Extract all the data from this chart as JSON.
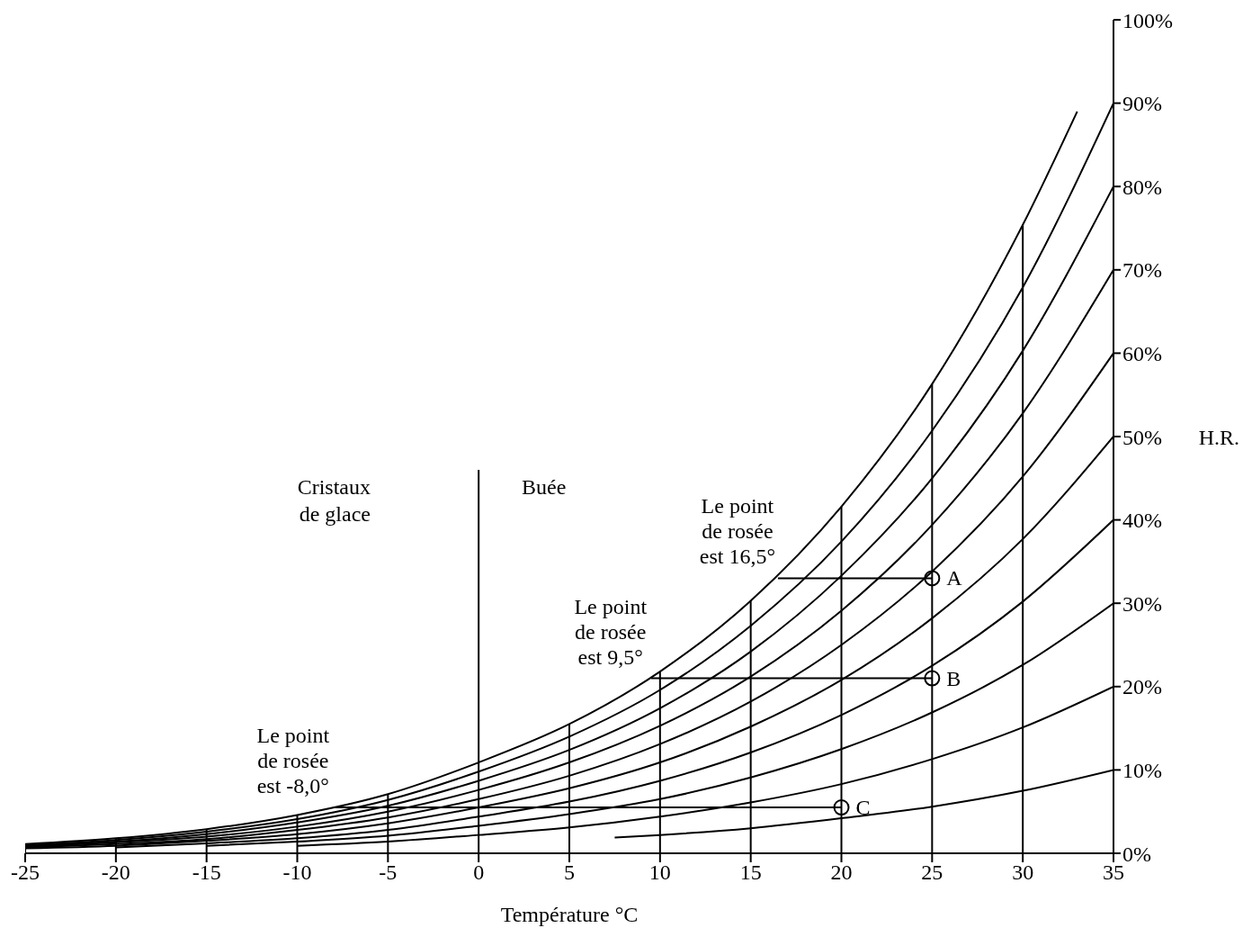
{
  "chart_data": {
    "type": "line",
    "xlabel": "Température   °C",
    "ylabel": "H.R.",
    "xlim": [
      -25,
      35
    ],
    "xticks": [
      -25,
      -20,
      -15,
      -10,
      -5,
      0,
      5,
      10,
      15,
      20,
      25,
      30,
      35
    ],
    "ylim": [
      0,
      100
    ],
    "yticks": [
      {
        "value": 0,
        "label": "0%"
      },
      {
        "value": 10,
        "label": "10%"
      },
      {
        "value": 20,
        "label": "20%"
      },
      {
        "value": 30,
        "label": "30%"
      },
      {
        "value": 40,
        "label": "40%"
      },
      {
        "value": 50,
        "label": "50%"
      },
      {
        "value": 60,
        "label": "60%"
      },
      {
        "value": 70,
        "label": "70%"
      },
      {
        "value": 80,
        "label": "80%"
      },
      {
        "value": 90,
        "label": "90%"
      },
      {
        "value": 100,
        "label": "100%"
      }
    ],
    "marker": "none",
    "line_style": "solid",
    "series": [
      {
        "color": "#000000",
        "x": [
          7.5,
          10,
          15,
          20,
          25,
          30,
          35
        ],
        "values": [
          1.9,
          2.2,
          3.0,
          4.2,
          5.6,
          7.5,
          10
        ]
      },
      {
        "color": "#000000",
        "x": [
          -10,
          -5,
          0,
          5,
          10,
          15,
          20,
          25,
          30,
          35
        ],
        "values": [
          0.9,
          1.4,
          2.2,
          3.1,
          4.4,
          6.1,
          8.3,
          11.3,
          15.1,
          20
        ]
      },
      {
        "color": "#000000",
        "x": [
          -15,
          -10,
          -5,
          0,
          5,
          10,
          15,
          20,
          25,
          30,
          35
        ],
        "values": [
          0.9,
          1.4,
          2.1,
          3.3,
          4.7,
          6.5,
          9.1,
          12.5,
          16.9,
          22.6,
          30
        ]
      },
      {
        "color": "#000000",
        "x": [
          -20,
          -15,
          -10,
          -5,
          0,
          5,
          10,
          15,
          20,
          25,
          30,
          35
        ],
        "values": [
          0.7,
          1.2,
          1.8,
          2.8,
          4.4,
          6.2,
          8.7,
          12.1,
          16.6,
          22.5,
          30.2,
          40
        ]
      },
      {
        "color": "#000000",
        "x": [
          -25,
          -20,
          -15,
          -10,
          -5,
          0,
          5,
          10,
          15,
          20,
          25,
          30,
          35
        ],
        "values": [
          0.6,
          0.9,
          1.5,
          2.3,
          3.6,
          5.5,
          7.8,
          10.9,
          15.2,
          20.8,
          28.2,
          37.7,
          50
        ]
      },
      {
        "color": "#000000",
        "x": [
          -25,
          -20,
          -15,
          -10,
          -5,
          0,
          5,
          10,
          15,
          20,
          25,
          30,
          35
        ],
        "values": [
          0.7,
          1.1,
          1.7,
          2.8,
          4.3,
          6.5,
          9.3,
          13.1,
          18.2,
          25.0,
          33.8,
          45.2,
          60
        ]
      },
      {
        "color": "#000000",
        "x": [
          -25,
          -20,
          -15,
          -10,
          -5,
          0,
          5,
          10,
          15,
          20,
          25,
          30,
          35
        ],
        "values": [
          0.8,
          1.3,
          2.0,
          3.2,
          5.0,
          7.6,
          10.9,
          15.3,
          21.2,
          29.1,
          39.4,
          52.8,
          70
        ]
      },
      {
        "color": "#000000",
        "x": [
          -25,
          -20,
          -15,
          -10,
          -5,
          0,
          5,
          10,
          15,
          20,
          25,
          30,
          35
        ],
        "values": [
          0.9,
          1.4,
          2.3,
          3.7,
          5.7,
          8.7,
          12.4,
          17.4,
          24.2,
          33.3,
          45.0,
          60.3,
          80
        ]
      },
      {
        "color": "#000000",
        "x": [
          -25,
          -20,
          -15,
          -10,
          -5,
          0,
          5,
          10,
          15,
          20,
          25,
          30,
          35
        ],
        "values": [
          1.0,
          1.6,
          2.6,
          4.1,
          6.4,
          9.8,
          14.0,
          19.6,
          27.3,
          37.4,
          50.7,
          67.9,
          90
        ]
      },
      {
        "color": "#000000",
        "x": [
          -25,
          -20,
          -15,
          -10,
          -5,
          0,
          5,
          10,
          15,
          20,
          25,
          30,
          33
        ],
        "values": [
          1.1,
          1.8,
          2.9,
          4.6,
          7.1,
          10.9,
          15.5,
          21.8,
          30.3,
          41.6,
          56.3,
          75.4,
          89
        ]
      },
      {
        "color": "#000000",
        "x": [
          16.5,
          25
        ],
        "values": [
          33,
          33
        ]
      },
      {
        "color": "#000000",
        "x": [
          9.5,
          25
        ],
        "values": [
          21,
          21
        ]
      },
      {
        "color": "#000000",
        "x": [
          -8,
          20
        ],
        "values": [
          5.5,
          5.5
        ]
      },
      {
        "color": "#000000",
        "x": [
          -25,
          -25
        ],
        "values": [
          0,
          1.1
        ]
      },
      {
        "color": "#000000",
        "x": [
          -20,
          -20
        ],
        "values": [
          0,
          1.8
        ]
      },
      {
        "color": "#000000",
        "x": [
          -15,
          -15
        ],
        "values": [
          0,
          2.9
        ]
      },
      {
        "color": "#000000",
        "x": [
          -10,
          -10
        ],
        "values": [
          0,
          4.6
        ]
      },
      {
        "color": "#000000",
        "x": [
          -5,
          -5
        ],
        "values": [
          0,
          7.1
        ]
      },
      {
        "color": "#000000",
        "x": [
          5,
          5
        ],
        "values": [
          0,
          15.5
        ]
      },
      {
        "color": "#000000",
        "x": [
          10,
          10
        ],
        "values": [
          0,
          21.8
        ]
      },
      {
        "color": "#000000",
        "x": [
          15,
          15
        ],
        "values": [
          0,
          30.3
        ]
      },
      {
        "color": "#000000",
        "x": [
          20,
          20
        ],
        "values": [
          0,
          41.6
        ]
      },
      {
        "color": "#000000",
        "x": [
          25,
          25
        ],
        "values": [
          0,
          56.3
        ]
      },
      {
        "color": "#000000",
        "x": [
          30,
          30
        ],
        "values": [
          0,
          75.4
        ]
      },
      {
        "type": "scatter",
        "marker": "circle",
        "color": "#000000",
        "x": [
          25,
          25,
          20
        ],
        "values": [
          33,
          21,
          5.5
        ]
      }
    ],
    "ref_lines": [
      {
        "axis": "x",
        "value": 0,
        "color": "#000000"
      }
    ],
    "annotations": [
      {
        "text": "A",
        "x": 25,
        "y": 33
      },
      {
        "text": "B",
        "x": 25,
        "y": 21
      },
      {
        "text": "C",
        "x": 20,
        "y": 5.5
      },
      {
        "text": "Le point\nde rosée\nest 16,5°",
        "x": 16.5,
        "y": 33
      },
      {
        "text": "Le point\nde rosée\nest 9,5°",
        "x": 9.5,
        "y": 21
      },
      {
        "text": "Le point\nde rosée\nest -8,0°",
        "x": -8,
        "y": 5.5
      },
      "Cristaux\nde glace",
      "Buée"
    ]
  }
}
